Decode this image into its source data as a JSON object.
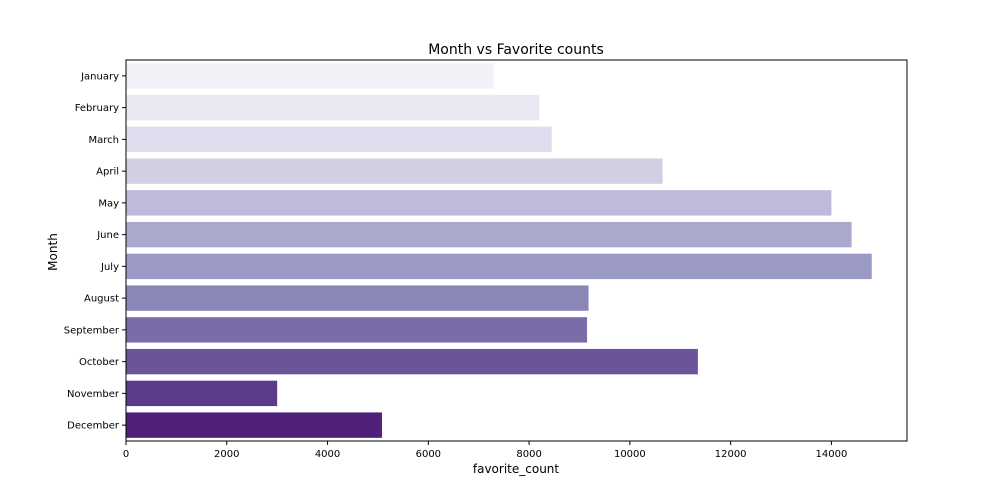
{
  "chart_data": {
    "type": "bar",
    "orientation": "horizontal",
    "title": "Month vs Favorite counts",
    "xlabel": "favorite_count",
    "ylabel": "Month",
    "categories": [
      "January",
      "February",
      "March",
      "April",
      "May",
      "June",
      "July",
      "August",
      "September",
      "October",
      "November",
      "December"
    ],
    "values": [
      7300,
      8200,
      8450,
      10650,
      14000,
      14400,
      14800,
      9180,
      9150,
      11350,
      3000,
      5080
    ],
    "colors": [
      "#f3f1f7",
      "#e9e7f2",
      "#dedded",
      "#d1d0e3",
      "#bdbbd9",
      "#aaa9cd",
      "#9b99c5",
      "#8a87b7",
      "#7a6ca7",
      "#6b5497",
      "#5b3c8a",
      "#4f2178"
    ],
    "xlim": [
      0,
      15500
    ],
    "xticks": [
      0,
      2000,
      4000,
      6000,
      8000,
      10000,
      12000,
      14000
    ],
    "grid": false,
    "legend": "none"
  }
}
